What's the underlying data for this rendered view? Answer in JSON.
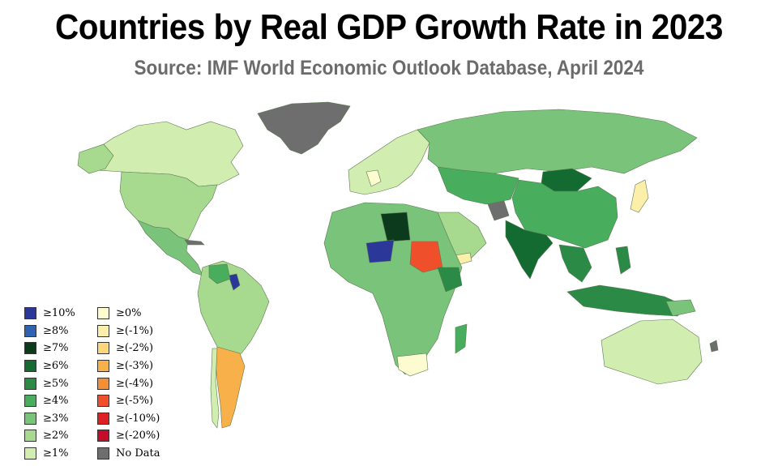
{
  "title": "Countries by Real GDP Growth Rate in 2023",
  "subtitle": "Source: IMF World Economic Outlook Database, April 2024",
  "colors": {
    "ge10": "#2b3899",
    "ge8": "#2f62b1",
    "ge7": "#0b3b1c",
    "ge6": "#136b31",
    "ge5": "#2b8a45",
    "ge4": "#48ad5c",
    "ge3": "#79c47a",
    "ge2": "#a7d98e",
    "ge1": "#d1edb0",
    "ge0": "#fdfbd0",
    "gem1": "#fcefaa",
    "gem2": "#fbd67a",
    "gem3": "#f7b04a",
    "gem4": "#f48f36",
    "gem5": "#f04f2c",
    "gem10": "#e01f21",
    "gem20": "#c30e2a",
    "nodata": "#6e6e6e"
  },
  "legend": {
    "left": [
      {
        "label": "≥10%",
        "color": "#2b3899"
      },
      {
        "label": "≥8%",
        "color": "#2f62b1"
      },
      {
        "label": "≥7%",
        "color": "#0b3b1c"
      },
      {
        "label": "≥6%",
        "color": "#136b31"
      },
      {
        "label": "≥5%",
        "color": "#2b8a45"
      },
      {
        "label": "≥4%",
        "color": "#48ad5c"
      },
      {
        "label": "≥3%",
        "color": "#79c47a"
      },
      {
        "label": "≥2%",
        "color": "#a7d98e"
      },
      {
        "label": "≥1%",
        "color": "#d1edb0"
      }
    ],
    "right": [
      {
        "label": "≥0%",
        "color": "#fdfbd0"
      },
      {
        "label": "≥(-1%)",
        "color": "#fcefaa"
      },
      {
        "label": "≥(-2%)",
        "color": "#fbd67a"
      },
      {
        "label": "≥(-3%)",
        "color": "#f7b04a"
      },
      {
        "label": "≥(-4%)",
        "color": "#f48f36"
      },
      {
        "label": "≥(-5%)",
        "color": "#f04f2c"
      },
      {
        "label": "≥(-10%)",
        "color": "#e01f21"
      },
      {
        "label": "≥(-20%)",
        "color": "#c30e2a"
      },
      {
        "label": "No Data",
        "color": "#6e6e6e"
      }
    ]
  }
}
